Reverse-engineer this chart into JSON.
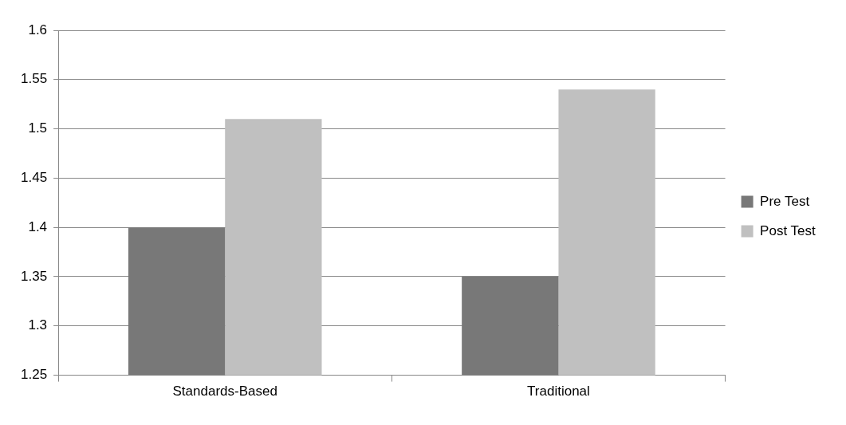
{
  "chart_data": {
    "type": "bar",
    "categories": [
      "Standards-Based",
      "Traditional"
    ],
    "series": [
      {
        "name": "Pre Test",
        "color": "#787878",
        "values": [
          1.4,
          1.35
        ]
      },
      {
        "name": "Post Test",
        "color": "#c0c0c0",
        "values": [
          1.51,
          1.54
        ]
      }
    ],
    "ylim": [
      1.25,
      1.6
    ],
    "yticks": [
      1.25,
      1.3,
      1.35,
      1.4,
      1.45,
      1.5,
      1.55,
      1.6
    ],
    "grid": "y",
    "legend": "right"
  }
}
